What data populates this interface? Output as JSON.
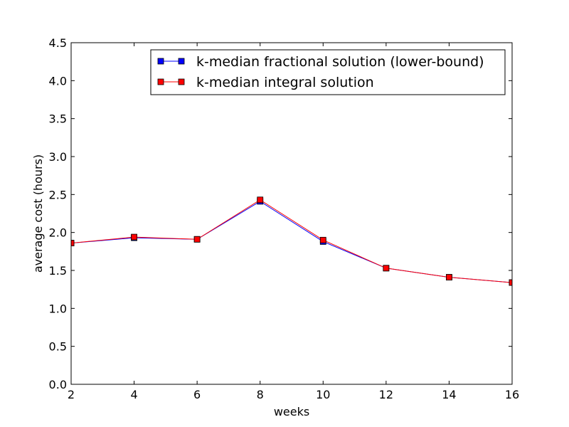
{
  "chart_data": {
    "type": "line",
    "title": "",
    "xlabel": "weeks",
    "ylabel": "average cost (hours)",
    "xlim": [
      2,
      16
    ],
    "ylim": [
      0,
      4.5
    ],
    "x_ticks": [
      2,
      4,
      6,
      8,
      10,
      12,
      14,
      16
    ],
    "y_ticks": [
      0,
      0.5,
      1,
      1.5,
      2,
      2.5,
      3,
      3.5,
      4,
      4.5
    ],
    "x_tick_labels": [
      "2",
      "4",
      "6",
      "8",
      "10",
      "12",
      "14",
      "16"
    ],
    "y_tick_labels": [
      "0.0",
      "0.5",
      "1.0",
      "1.5",
      "2.0",
      "2.5",
      "3.0",
      "3.5",
      "4.0",
      "4.5"
    ],
    "grid": false,
    "legend_placement": "top-right",
    "x": [
      2,
      4,
      6,
      8,
      10,
      12,
      14,
      16
    ],
    "series": [
      {
        "name": "k-median fractional solution (lower-bound)",
        "color": "#0000ff",
        "marker": "square",
        "values": [
          1.86,
          1.93,
          1.91,
          2.41,
          1.88,
          1.53,
          1.41,
          1.34
        ]
      },
      {
        "name": "k-median integral solution",
        "color": "#ff0000",
        "marker": "square",
        "values": [
          1.86,
          1.94,
          1.91,
          2.43,
          1.9,
          1.53,
          1.41,
          1.34
        ]
      }
    ]
  }
}
